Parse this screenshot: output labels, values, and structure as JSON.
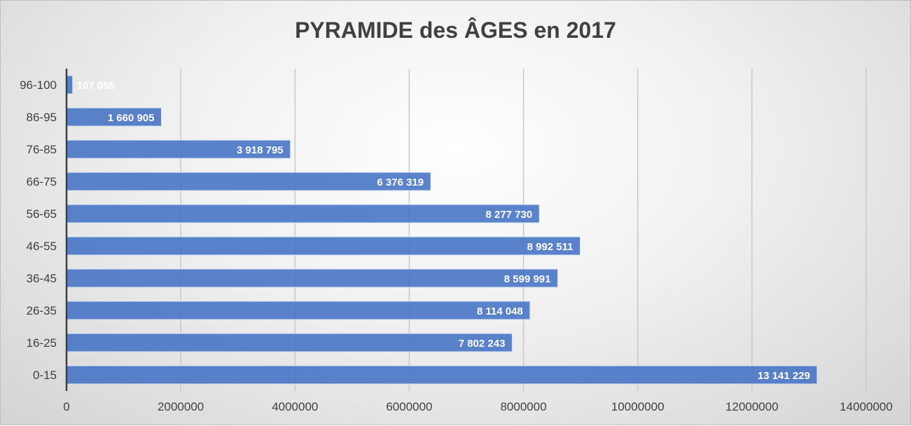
{
  "chart_data": {
    "type": "bar",
    "orientation": "horizontal",
    "title": "PYRAMIDE des ÂGES en 2017",
    "xlabel": "",
    "ylabel": "",
    "categories": [
      "96-100",
      "86-95",
      "76-85",
      "66-75",
      "56-65",
      "46-55",
      "36-45",
      "26-35",
      "16-25",
      "0-15"
    ],
    "values": [
      107055,
      1660905,
      3918795,
      6376319,
      8277730,
      8992511,
      8599991,
      8114048,
      7802243,
      13141229
    ],
    "data_labels": [
      "107 055",
      "1 660 905",
      "3 918 795",
      "6 376 319",
      "8 277 730",
      "8 992 511",
      "8 599 991",
      "8 114 048",
      "7 802 243",
      "13 141 229"
    ],
    "xlim": [
      0,
      14000000
    ],
    "x_ticks": [
      "0",
      "2000000",
      "4000000",
      "6000000",
      "8000000",
      "10000000",
      "12000000",
      "14000000"
    ],
    "grid": true,
    "bar_color": "#4472c4"
  }
}
